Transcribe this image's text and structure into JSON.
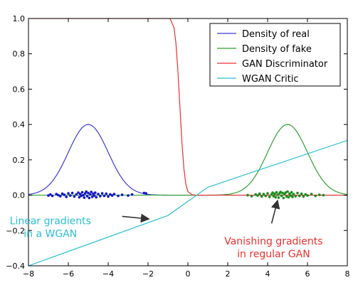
{
  "chart_data": {
    "type": "line",
    "xlim": [
      -8,
      8
    ],
    "ylim": [
      -0.4,
      1.0
    ],
    "x_ticks": [
      -8,
      -6,
      -4,
      -2,
      0,
      2,
      4,
      6,
      8
    ],
    "y_ticks": [
      -0.4,
      -0.2,
      0.0,
      0.2,
      0.4,
      0.6,
      0.8,
      1.0
    ],
    "x_tick_labels": [
      "−8",
      "−6",
      "−4",
      "−2",
      "0",
      "2",
      "4",
      "6",
      "8"
    ],
    "y_tick_labels": [
      "−0.4",
      "−0.2",
      "0.0",
      "0.2",
      "0.4",
      "0.6",
      "0.8",
      "1.0"
    ],
    "grid": false,
    "legend_position": "top-right",
    "series": [
      {
        "name": "Density of real",
        "color": "#3b3bd6",
        "kind": "gaussian",
        "mean": -5,
        "std": 1,
        "peak": 0.4
      },
      {
        "name": "Density of fake",
        "color": "#2ea02e",
        "kind": "gaussian",
        "mean": 5,
        "std": 1,
        "peak": 0.4
      },
      {
        "name": "GAN Discriminator",
        "color": "#e8312f",
        "x": [
          -8,
          -0.9,
          -0.7,
          -0.6,
          -0.5,
          -0.4,
          -0.3,
          -0.2,
          -0.1,
          0.0,
          0.2,
          0.4,
          8
        ],
        "y": [
          1.0,
          1.0,
          0.95,
          0.86,
          0.7,
          0.5,
          0.3,
          0.15,
          0.06,
          0.02,
          0.003,
          0.0,
          0.0
        ]
      },
      {
        "name": "WGAN Critic",
        "color": "#2bbfd1",
        "x": [
          -8,
          -1,
          1,
          8
        ],
        "y": [
          -0.4,
          -0.115,
          0.045,
          0.31
        ]
      }
    ],
    "scatter": [
      {
        "color": "#1414c8",
        "points": [
          [
            -7.0,
            -0.002
          ],
          [
            -6.9,
            0.004
          ],
          [
            -6.8,
            -0.004
          ],
          [
            -6.6,
            0.006
          ],
          [
            -6.5,
            0.0
          ],
          [
            -6.4,
            -0.006
          ],
          [
            -6.3,
            0.008
          ],
          [
            -6.2,
            0.002
          ],
          [
            -6.1,
            -0.01
          ],
          [
            -6.0,
            0.01
          ],
          [
            -5.9,
            -0.002
          ],
          [
            -5.8,
            0.012
          ],
          [
            -5.7,
            -0.008
          ],
          [
            -5.6,
            0.004
          ],
          [
            -5.5,
            0.014
          ],
          [
            -5.45,
            -0.012
          ],
          [
            -5.4,
            0.006
          ],
          [
            -5.35,
            -0.004
          ],
          [
            -5.3,
            0.016
          ],
          [
            -5.25,
            0.0
          ],
          [
            -5.2,
            -0.014
          ],
          [
            -5.15,
            0.01
          ],
          [
            -5.1,
            0.02
          ],
          [
            -5.05,
            -0.006
          ],
          [
            -5.0,
            0.012
          ],
          [
            -4.95,
            -0.016
          ],
          [
            -4.9,
            0.004
          ],
          [
            -4.85,
            0.018
          ],
          [
            -4.8,
            -0.01
          ],
          [
            -4.75,
            0.008
          ],
          [
            -4.7,
            -0.002
          ],
          [
            -4.65,
            0.014
          ],
          [
            -4.6,
            -0.012
          ],
          [
            -4.5,
            0.006
          ],
          [
            -4.4,
            -0.006
          ],
          [
            -4.3,
            0.01
          ],
          [
            -4.2,
            -0.004
          ],
          [
            -4.1,
            0.008
          ],
          [
            -4.0,
            -0.008
          ],
          [
            -3.9,
            0.004
          ],
          [
            -3.8,
            -0.002
          ],
          [
            -3.7,
            0.006
          ],
          [
            -3.5,
            -0.004
          ],
          [
            -3.3,
            0.002
          ],
          [
            -3.0,
            -0.002
          ],
          [
            -2.8,
            0.004
          ],
          [
            -2.2,
            0.012
          ],
          [
            -2.1,
            0.01
          ]
        ]
      },
      {
        "color": "#1a8c1a",
        "points": [
          [
            3.0,
            0.0
          ],
          [
            3.2,
            -0.006
          ],
          [
            3.4,
            0.004
          ],
          [
            3.5,
            -0.002
          ],
          [
            3.6,
            0.008
          ],
          [
            3.7,
            -0.008
          ],
          [
            3.8,
            0.006
          ],
          [
            3.9,
            -0.004
          ],
          [
            4.0,
            0.01
          ],
          [
            4.1,
            -0.01
          ],
          [
            4.2,
            0.004
          ],
          [
            4.25,
            0.014
          ],
          [
            4.3,
            -0.006
          ],
          [
            4.35,
            0.008
          ],
          [
            4.4,
            -0.012
          ],
          [
            4.45,
            0.016
          ],
          [
            4.5,
            0.002
          ],
          [
            4.55,
            -0.014
          ],
          [
            4.6,
            0.01
          ],
          [
            4.65,
            0.018
          ],
          [
            4.7,
            -0.004
          ],
          [
            4.75,
            0.012
          ],
          [
            4.8,
            -0.016
          ],
          [
            4.85,
            0.006
          ],
          [
            4.9,
            0.014
          ],
          [
            4.95,
            -0.008
          ],
          [
            5.0,
            0.02
          ],
          [
            5.05,
            -0.012
          ],
          [
            5.1,
            0.008
          ],
          [
            5.15,
            -0.002
          ],
          [
            5.2,
            0.016
          ],
          [
            5.25,
            -0.01
          ],
          [
            5.3,
            0.006
          ],
          [
            5.4,
            -0.006
          ],
          [
            5.5,
            0.012
          ],
          [
            5.6,
            -0.004
          ],
          [
            5.7,
            0.008
          ],
          [
            5.8,
            -0.008
          ],
          [
            5.9,
            0.004
          ],
          [
            6.0,
            -0.002
          ],
          [
            6.2,
            0.006
          ],
          [
            6.4,
            -0.004
          ],
          [
            6.6,
            0.002
          ],
          [
            6.8,
            0.0
          ]
        ]
      }
    ],
    "annotations": [
      {
        "text_lines": [
          "Linear gradients",
          "in a WGAN"
        ],
        "color": "#2bbfd1",
        "text_at": [
          -6.9,
          -0.165
        ],
        "arrow_from": [
          -3.3,
          -0.12
        ],
        "arrow_to": [
          -1.95,
          -0.135
        ]
      },
      {
        "text_lines": [
          "Vanishing gradients",
          "in regular GAN"
        ],
        "color": "#e8312f",
        "text_at": [
          4.3,
          -0.28
        ],
        "arrow_from": [
          4.2,
          -0.16
        ],
        "arrow_to": [
          4.5,
          -0.03
        ]
      }
    ]
  }
}
